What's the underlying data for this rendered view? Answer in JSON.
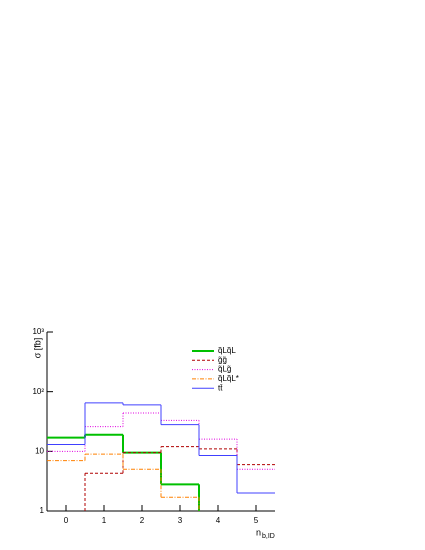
{
  "chart_data": {
    "type": "histogram",
    "y_label": "σ [fb]",
    "x_label": "n",
    "x_label_sub": "b,ID",
    "bins": [
      -0.5,
      0.5,
      1.5,
      2.5,
      3.5,
      4.5,
      5.5
    ],
    "xlim": [
      -0.5,
      5.5
    ],
    "xticks": [
      0,
      1,
      2,
      3,
      4,
      5
    ],
    "log_y": true,
    "ylim": [
      1,
      1000
    ],
    "yticks": [
      1,
      10,
      {
        "value": 100,
        "label": "10²"
      },
      {
        "value": 1000,
        "label": "10³"
      }
    ],
    "series": [
      {
        "name": "q̃Lq̃L",
        "color": "#00c000",
        "style": "solid",
        "width": 2,
        "values": [
          17,
          19,
          9.5,
          2.8,
          null,
          null
        ]
      },
      {
        "name": "g̃g̃",
        "color": "#b00000",
        "style": "dashed",
        "width": 1,
        "values": [
          null,
          4.3,
          9.5,
          12,
          11,
          6
        ]
      },
      {
        "name": "q̃Lg̃",
        "color": "#e000e0",
        "style": "dotted",
        "width": 1,
        "values": [
          10,
          26,
          44,
          33,
          16,
          5
        ]
      },
      {
        "name": "q̃Lq̃L*",
        "color": "#ff8000",
        "style": "dashdot",
        "width": 1,
        "values": [
          7,
          9,
          5,
          1.7,
          null,
          null
        ]
      },
      {
        "name": "tt̄",
        "color": "#4040ff",
        "style": "solid",
        "width": 1,
        "values": [
          13,
          65,
          60,
          28,
          8.5,
          2
        ]
      }
    ]
  }
}
